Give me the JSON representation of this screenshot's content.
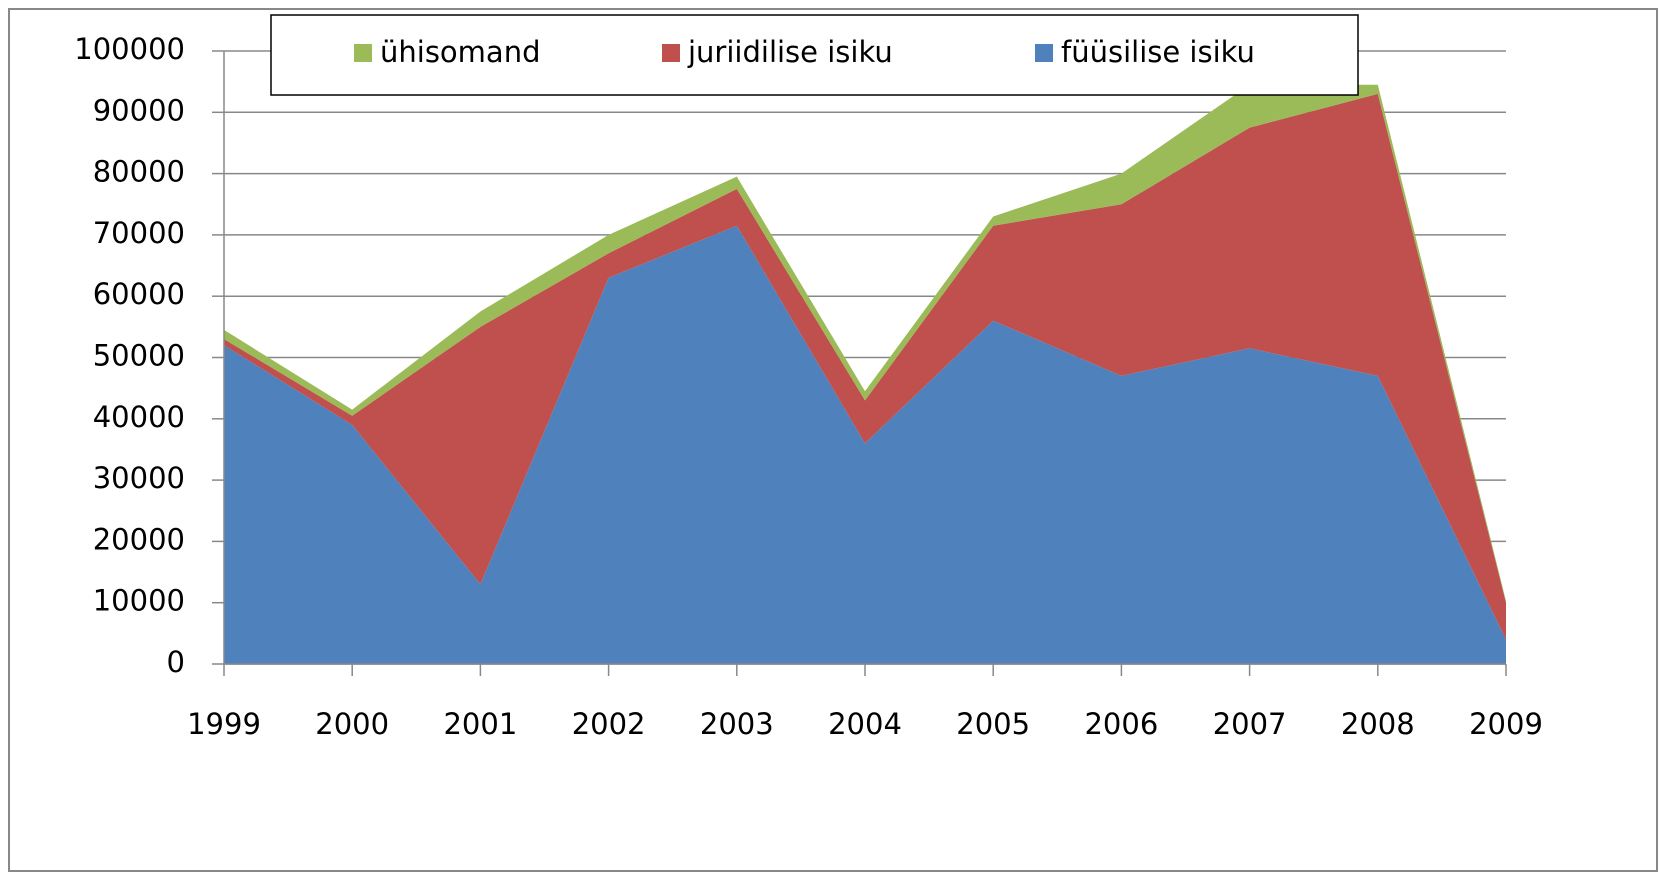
{
  "chart_data": {
    "type": "stacked_area",
    "categories": [
      "1999",
      "2000",
      "2001",
      "2002",
      "2003",
      "2004",
      "2005",
      "2006",
      "2007",
      "2008",
      "2009"
    ],
    "series": [
      {
        "name": "füüsilise isiku",
        "color": "#4f81bd",
        "values": [
          52000,
          39000,
          13000,
          63000,
          71500,
          36000,
          56000,
          47000,
          51500,
          47000,
          4000
        ]
      },
      {
        "name": "juriidilise isiku",
        "color": "#c0504d",
        "values": [
          1000,
          1500,
          42000,
          4000,
          6000,
          7000,
          15500,
          28000,
          36000,
          46000,
          6000
        ]
      },
      {
        "name": "ühisomand",
        "color": "#9bbb59",
        "values": [
          1500,
          1000,
          2500,
          3000,
          2000,
          1500,
          1500,
          5000,
          7000,
          1500,
          300
        ]
      }
    ],
    "ylim": [
      0,
      100000
    ],
    "yticks": [
      0,
      10000,
      20000,
      30000,
      40000,
      50000,
      60000,
      70000,
      80000,
      90000,
      100000
    ],
    "grid": true,
    "legend": "top"
  }
}
